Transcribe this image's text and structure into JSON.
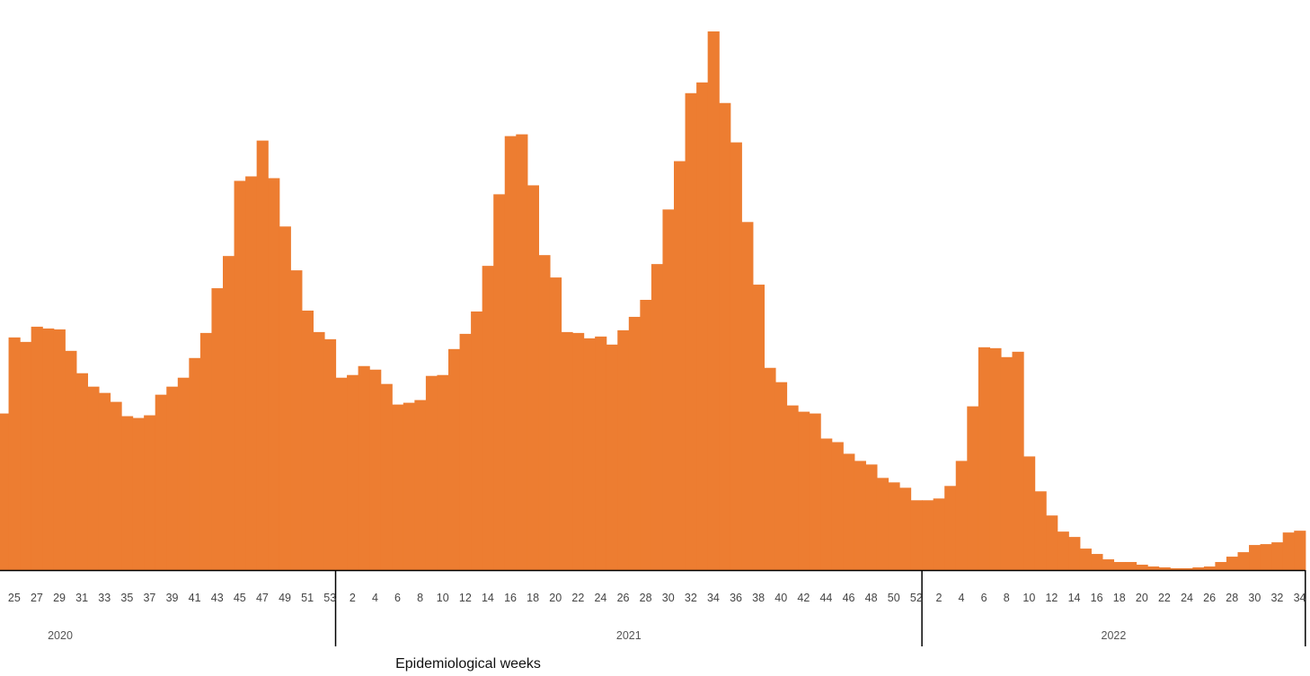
{
  "chart_data": {
    "type": "bar",
    "xlabel": "Epidemiological weeks",
    "bar_color": "#ED7D31",
    "axis_color": "#000000",
    "ylim": [
      0,
      600
    ],
    "year_groups": [
      {
        "year": "2020",
        "weeks": [
          24,
          25,
          26,
          27,
          28,
          29,
          30,
          31,
          32,
          33,
          34,
          35,
          36,
          37,
          38,
          39,
          40,
          41,
          42,
          43,
          44,
          45,
          46,
          47,
          48,
          49,
          50,
          51,
          52,
          53
        ],
        "values": [
          175,
          260,
          255,
          272,
          270,
          269,
          245,
          220,
          205,
          198,
          188,
          172,
          170,
          173,
          196,
          205,
          215,
          237,
          265,
          315,
          351,
          435,
          440,
          480,
          438,
          384,
          335,
          290,
          266,
          258
        ]
      },
      {
        "year": "2021",
        "weeks": [
          1,
          2,
          3,
          4,
          5,
          6,
          7,
          8,
          9,
          10,
          11,
          12,
          13,
          14,
          15,
          16,
          17,
          18,
          19,
          20,
          21,
          22,
          23,
          24,
          25,
          26,
          27,
          28,
          29,
          30,
          31,
          32,
          33,
          34,
          35,
          36,
          37,
          38,
          39,
          40,
          41,
          42,
          43,
          44,
          45,
          46,
          47,
          48,
          49,
          50,
          51,
          52
        ],
        "values": [
          215,
          218,
          228,
          224,
          208,
          185,
          187,
          190,
          217,
          218,
          247,
          264,
          289,
          340,
          420,
          485,
          487,
          430,
          352,
          327,
          266,
          265,
          259,
          261,
          252,
          268,
          283,
          302,
          342,
          403,
          457,
          533,
          545,
          602,
          522,
          478,
          389,
          319,
          226,
          210,
          184,
          177,
          175,
          147,
          143,
          130,
          122,
          118,
          103,
          98,
          92,
          78
        ]
      },
      {
        "year": "2022",
        "weeks": [
          1,
          2,
          3,
          4,
          5,
          6,
          7,
          8,
          9,
          10,
          11,
          12,
          13,
          14,
          15,
          16,
          17,
          18,
          19,
          20,
          21,
          22,
          23,
          24,
          25,
          26,
          27,
          28,
          29,
          30,
          31,
          32,
          33,
          34
        ],
        "values": [
          78,
          80,
          94,
          122,
          183,
          249,
          248,
          238,
          244,
          127,
          88,
          61,
          43,
          37,
          24,
          18,
          12,
          9,
          9,
          6,
          4,
          3,
          2,
          2,
          3,
          4,
          9,
          15,
          20,
          28,
          29,
          31,
          42,
          44
        ]
      }
    ]
  }
}
